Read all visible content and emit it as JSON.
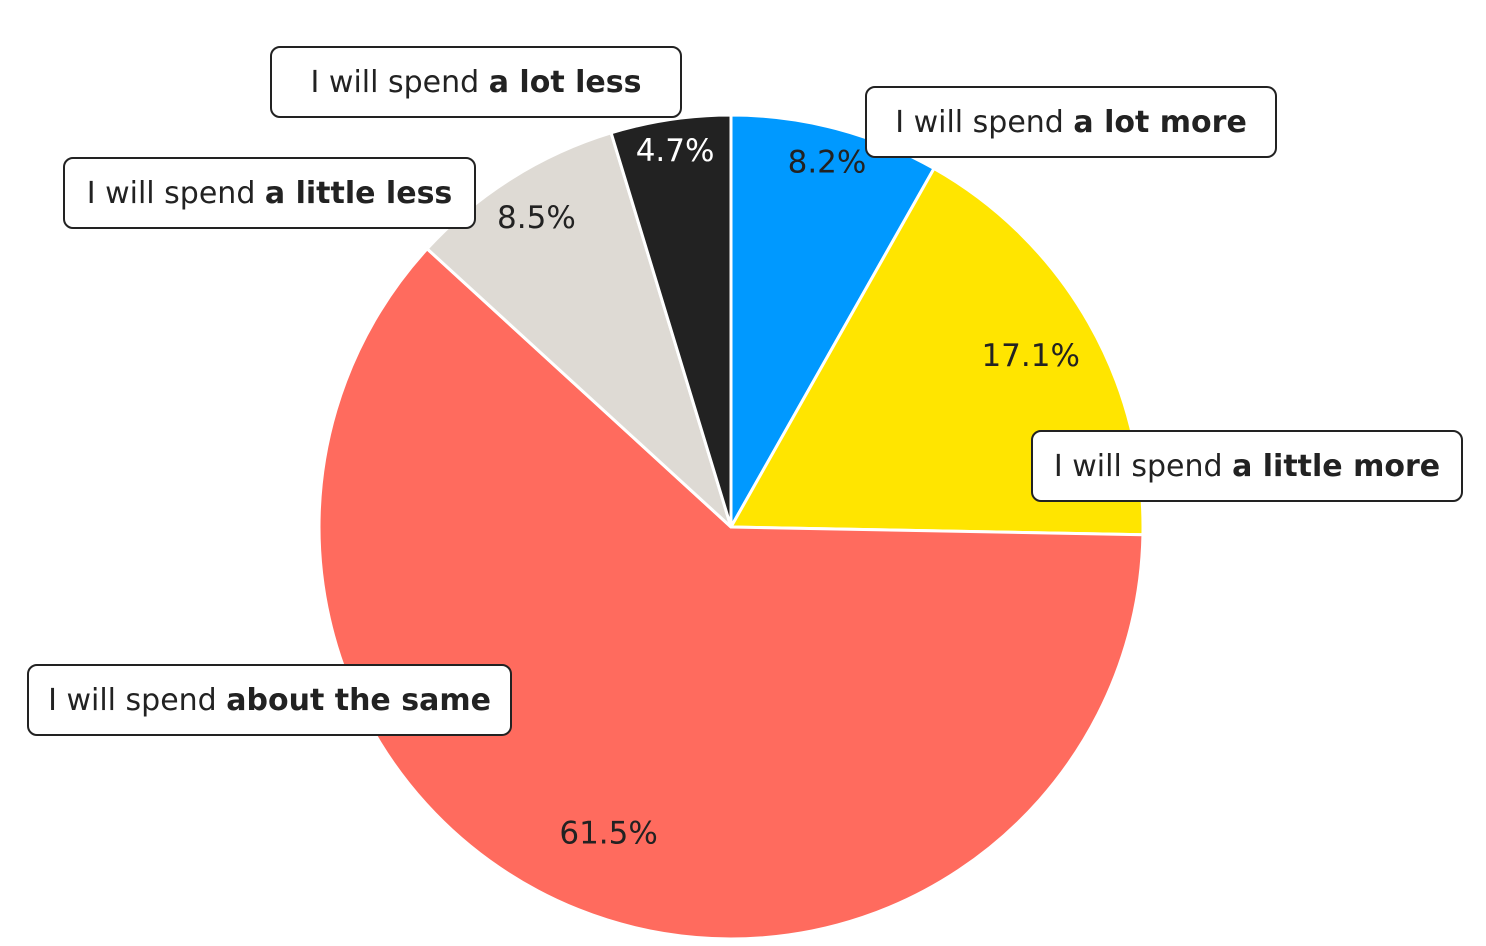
{
  "chart_data": {
    "type": "pie",
    "title": "",
    "start_angle_deg": 0,
    "direction": "clockwise",
    "slices": [
      {
        "label_prefix": "I will spend",
        "label_emph": "a lot more",
        "value": 8.2,
        "value_label": "8.2%",
        "color": "#0099FF",
        "label_color": "#222222"
      },
      {
        "label_prefix": "I will spend",
        "label_emph": "a little more",
        "value": 17.1,
        "value_label": "17.1%",
        "color": "#FFE500",
        "label_color": "#222222"
      },
      {
        "label_prefix": "I will spend",
        "label_emph": "about the same",
        "value": 61.5,
        "value_label": "61.5%",
        "color": "#FF6B5E",
        "label_color": "#222222"
      },
      {
        "label_prefix": "I will spend",
        "label_emph": "a little less",
        "value": 8.5,
        "value_label": "8.5%",
        "color": "#DEDAD4",
        "label_color": "#222222"
      },
      {
        "label_prefix": "I will spend",
        "label_emph": "a lot less",
        "value": 4.7,
        "value_label": "4.7%",
        "color": "#222222",
        "label_color": "#FFFFFF"
      }
    ]
  }
}
